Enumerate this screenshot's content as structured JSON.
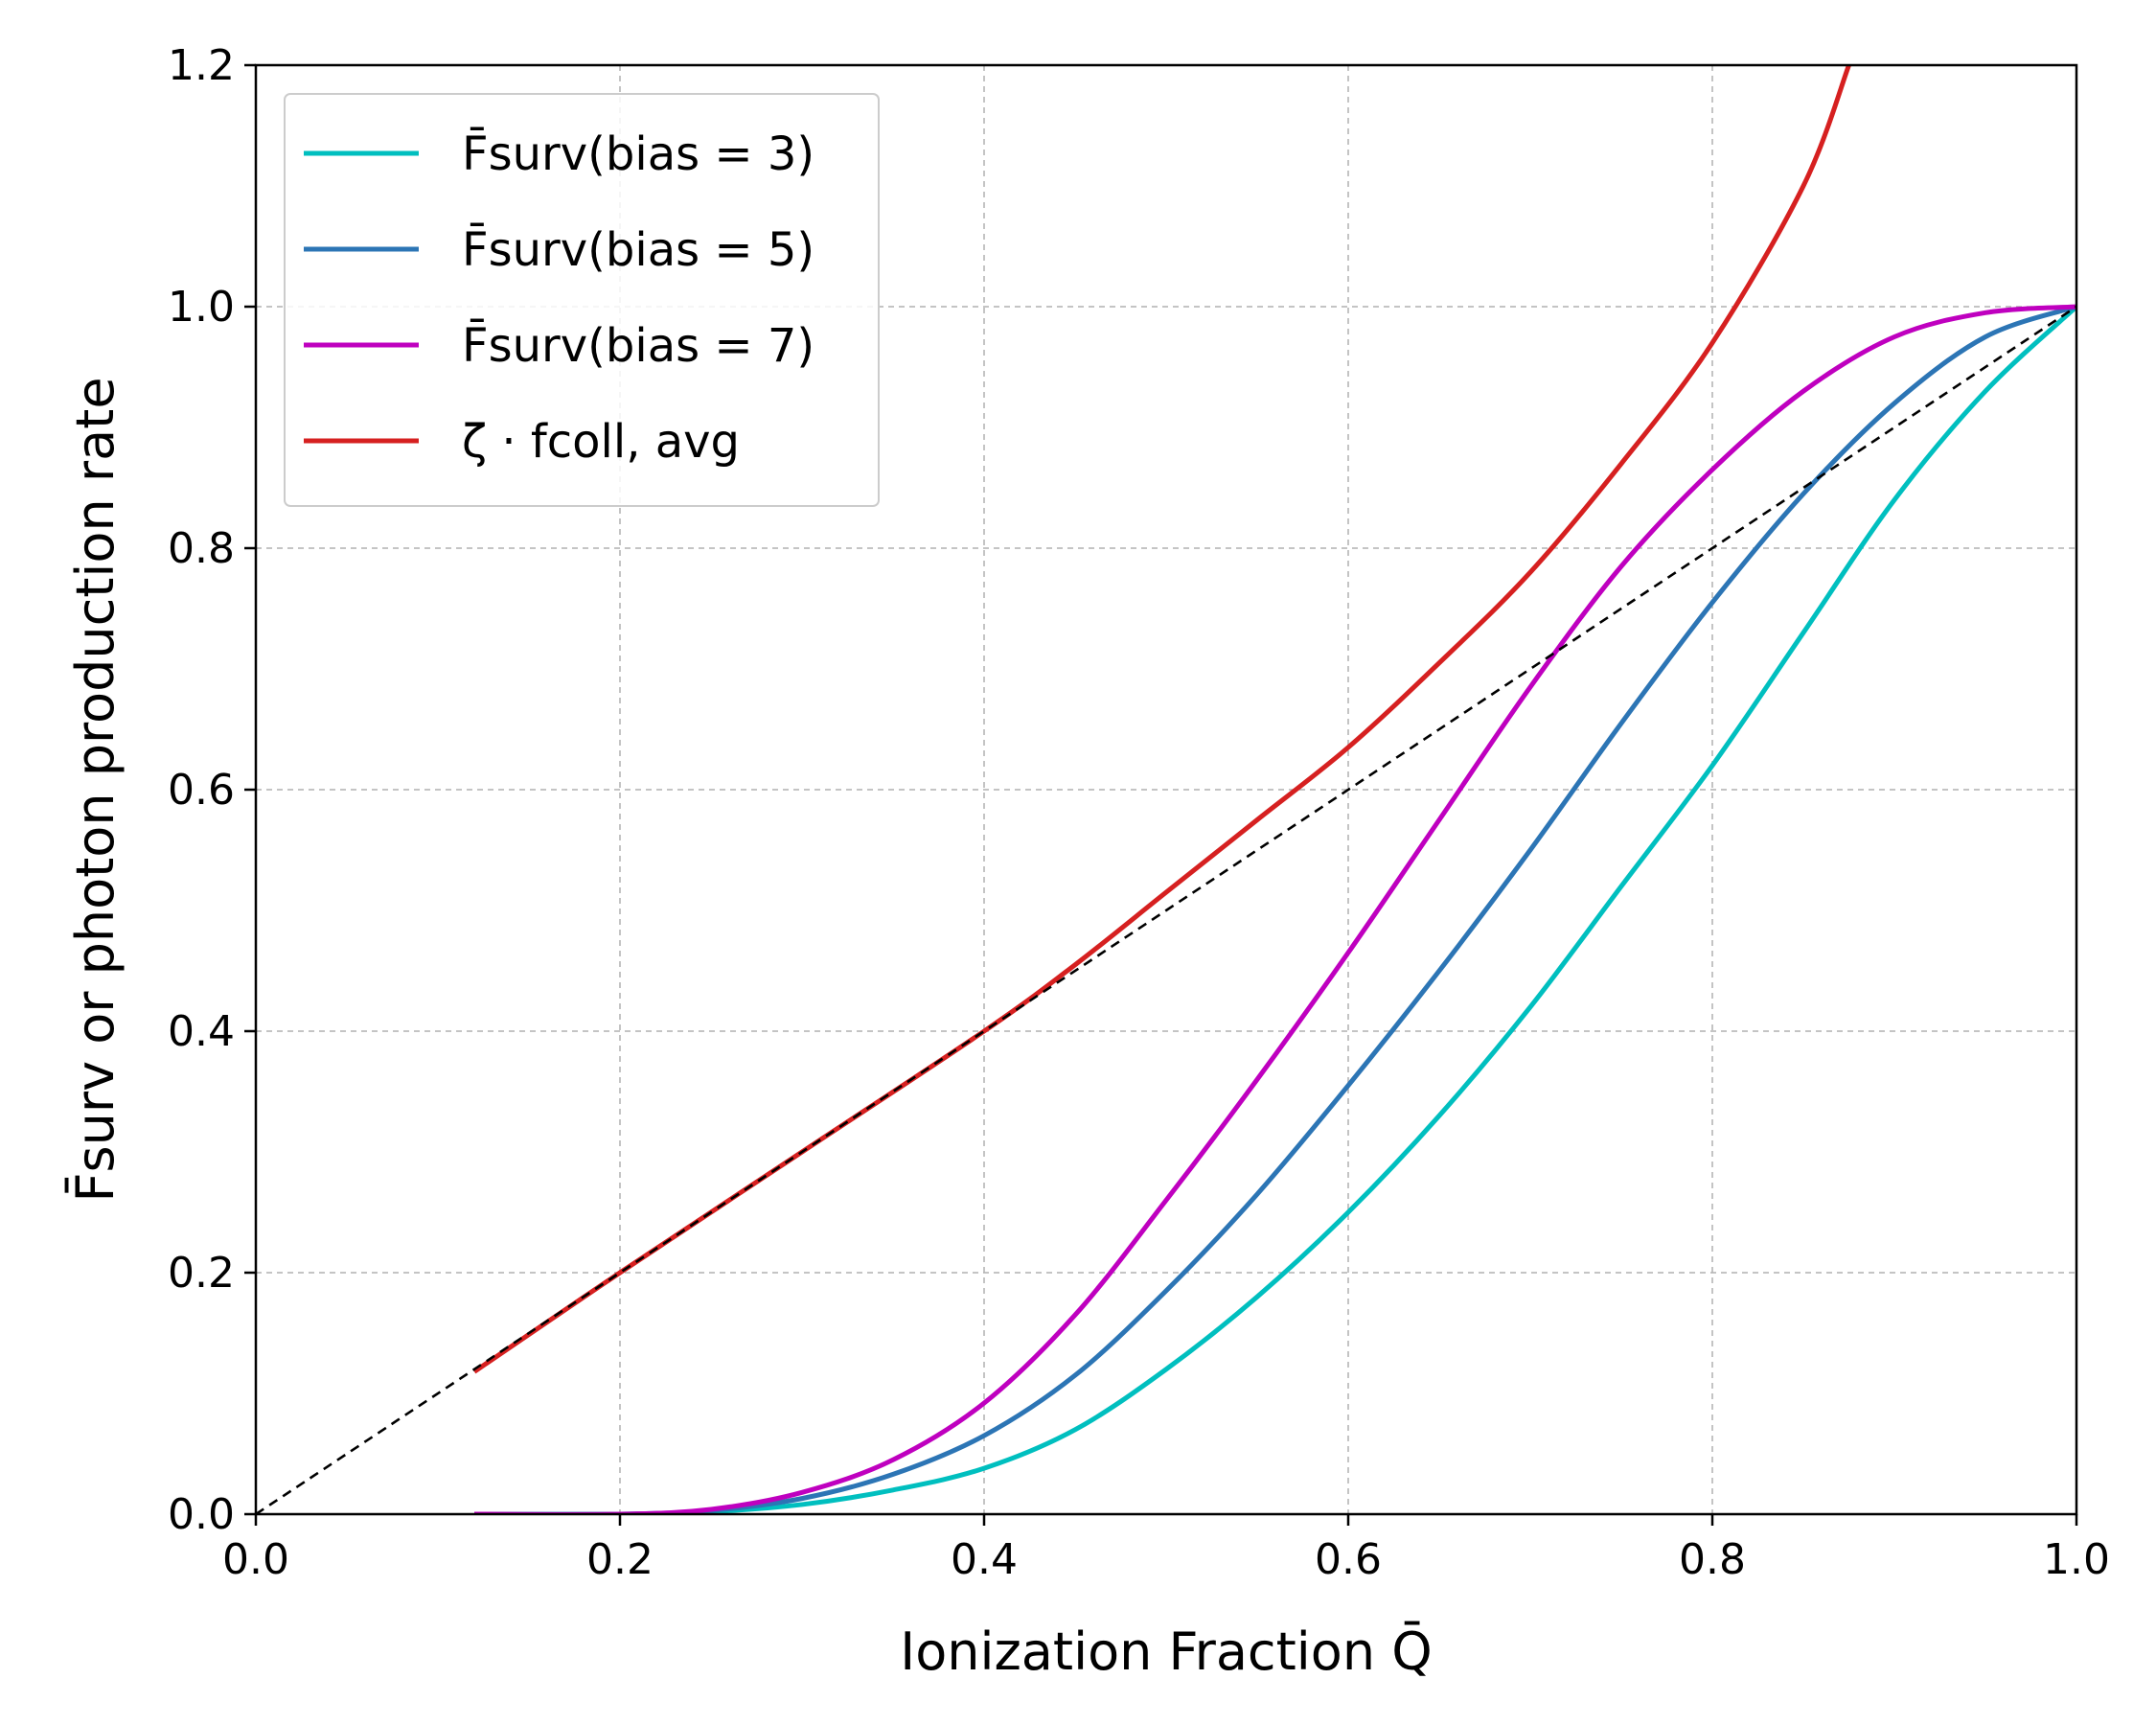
{
  "chart_data": {
    "type": "line",
    "xlabel": "Ionization Fraction Q̄",
    "ylabel": "F̄surv or photon production rate",
    "xlim": [
      0.0,
      1.0
    ],
    "ylim": [
      0.0,
      1.2
    ],
    "xticks": [
      "0.0",
      "0.2",
      "0.4",
      "0.6",
      "0.8",
      "1.0"
    ],
    "yticks": [
      "0.0",
      "0.2",
      "0.4",
      "0.6",
      "0.8",
      "1.0",
      "1.2"
    ],
    "grid": true,
    "legend_position": "top-left",
    "series": [
      {
        "name": "F̄surv(bias = 3)",
        "color": "#00bfbf",
        "x": [
          0.12,
          0.2,
          0.25,
          0.3,
          0.35,
          0.4,
          0.45,
          0.5,
          0.55,
          0.6,
          0.65,
          0.7,
          0.75,
          0.8,
          0.85,
          0.9,
          0.95,
          1.0
        ],
        "y": [
          0.0,
          0.0,
          0.002,
          0.008,
          0.02,
          0.038,
          0.07,
          0.12,
          0.18,
          0.25,
          0.33,
          0.42,
          0.52,
          0.62,
          0.73,
          0.84,
          0.93,
          1.0
        ]
      },
      {
        "name": "F̄surv(bias = 5)",
        "color": "#2c75b5",
        "x": [
          0.12,
          0.2,
          0.25,
          0.3,
          0.35,
          0.4,
          0.45,
          0.5,
          0.55,
          0.6,
          0.65,
          0.7,
          0.75,
          0.8,
          0.85,
          0.9,
          0.95,
          1.0
        ],
        "y": [
          0.0,
          0.0,
          0.003,
          0.013,
          0.033,
          0.065,
          0.115,
          0.185,
          0.265,
          0.355,
          0.45,
          0.55,
          0.655,
          0.755,
          0.845,
          0.92,
          0.975,
          1.0
        ]
      },
      {
        "name": "F̄surv(bias = 7)",
        "color": "#bf00bf",
        "x": [
          0.12,
          0.2,
          0.25,
          0.3,
          0.35,
          0.4,
          0.45,
          0.5,
          0.55,
          0.6,
          0.65,
          0.7,
          0.75,
          0.8,
          0.85,
          0.9,
          0.95,
          1.0
        ],
        "y": [
          0.0,
          0.0,
          0.004,
          0.018,
          0.045,
          0.092,
          0.165,
          0.26,
          0.36,
          0.465,
          0.575,
          0.685,
          0.785,
          0.865,
          0.93,
          0.975,
          0.995,
          1.0
        ]
      },
      {
        "name": "ζ · fcoll, avg",
        "color": "#d62020",
        "x": [
          0.12,
          0.2,
          0.3,
          0.4,
          0.45,
          0.5,
          0.55,
          0.6,
          0.65,
          0.7,
          0.75,
          0.8,
          0.85,
          0.875
        ],
        "y": [
          0.118,
          0.2,
          0.3,
          0.4,
          0.455,
          0.515,
          0.575,
          0.635,
          0.705,
          0.78,
          0.87,
          0.97,
          1.1,
          1.2
        ]
      },
      {
        "name": "",
        "color": "#000000",
        "dashed": true,
        "x": [
          0.0,
          1.0
        ],
        "y": [
          0.0,
          1.0
        ]
      }
    ]
  }
}
